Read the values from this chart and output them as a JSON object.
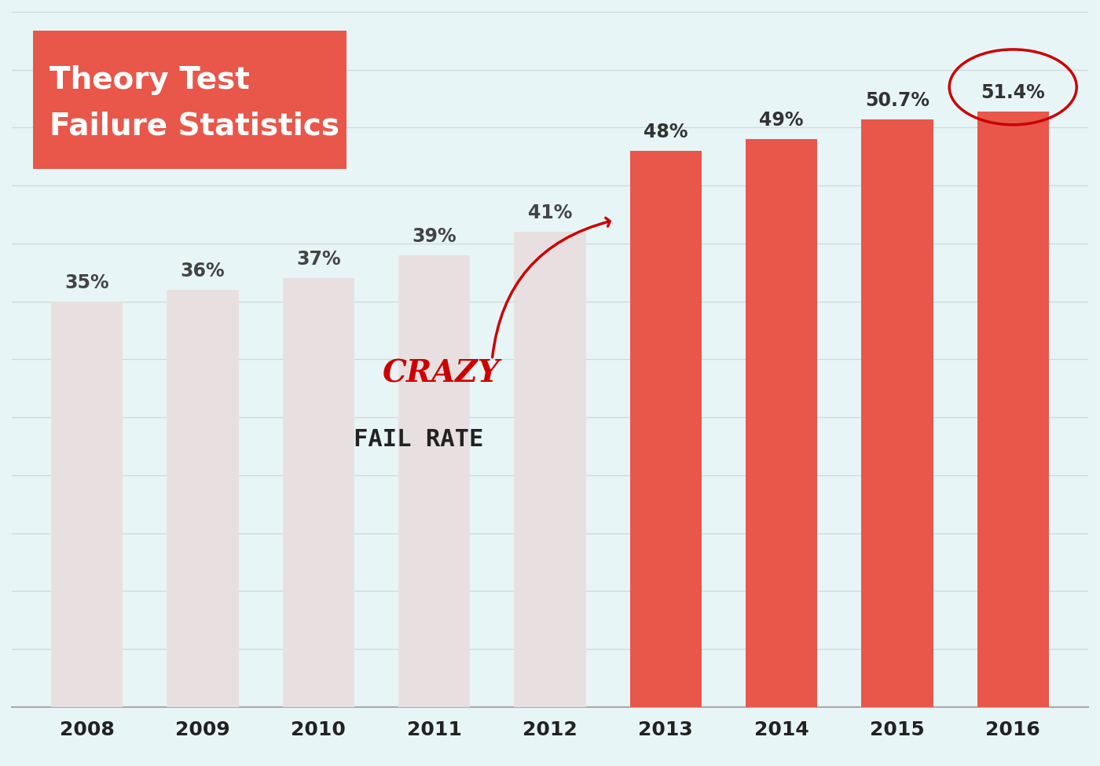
{
  "years": [
    "2008",
    "2009",
    "2010",
    "2011",
    "2012",
    "2013",
    "2014",
    "2015",
    "2016"
  ],
  "values": [
    35,
    36,
    37,
    39,
    41,
    48,
    49,
    50.7,
    51.4
  ],
  "labels": [
    "35%",
    "36%",
    "37%",
    "39%",
    "41%",
    "48%",
    "49%",
    "50.7%",
    "51.4%"
  ],
  "bar_colors_grey": [
    "#e8e0e0",
    "#e8e0e0",
    "#e8e0e0",
    "#e8e0e0",
    "#e8e0e0"
  ],
  "bar_colors_red": [
    "#e8574a",
    "#e8574a",
    "#e8574a",
    "#e8574a"
  ],
  "background_color": "#e8f5f7",
  "grid_color": "#d0d8da",
  "title_line1": "Theory Test",
  "title_line2": "Failure Statistics",
  "title_bg_color": "#e8574a",
  "title_text_color": "#ffffff",
  "label_color_grey": "#444444",
  "label_color_red": "#333333",
  "axis_label_color": "#222222",
  "crazy_text_color": "#cc0000",
  "fail_rate_color": "#222222",
  "ylim": [
    0,
    60
  ],
  "annotation_arrow_color": "#cc0000",
  "circle_color": "#cc0000"
}
